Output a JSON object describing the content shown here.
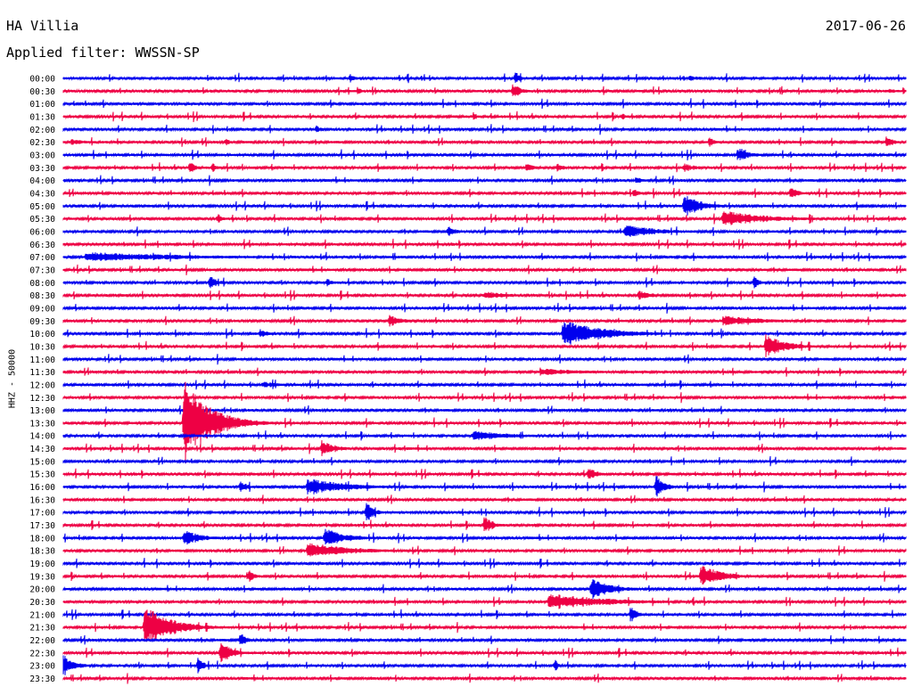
{
  "header": {
    "station": "HA Villia",
    "date": "2017-06-26",
    "filter": "Applied filter: WWSSN-SP"
  },
  "chart_data": {
    "type": "line",
    "title": "HA Villia",
    "ylabel": "HHZ - 50000",
    "grid": false,
    "trace_colors": [
      "#0000ee",
      "#ee0044"
    ],
    "rows": [
      "00:00",
      "00:30",
      "01:00",
      "01:30",
      "02:00",
      "02:30",
      "03:00",
      "03:30",
      "04:00",
      "04:30",
      "05:00",
      "05:30",
      "06:00",
      "06:30",
      "07:00",
      "07:30",
      "08:00",
      "08:30",
      "09:00",
      "09:30",
      "10:00",
      "10:30",
      "11:00",
      "11:30",
      "12:00",
      "12:30",
      "13:00",
      "13:30",
      "14:00",
      "14:30",
      "15:00",
      "15:30",
      "16:00",
      "16:30",
      "17:00",
      "17:30",
      "18:00",
      "18:30",
      "19:00",
      "19:30",
      "20:00",
      "20:30",
      "21:00",
      "21:30",
      "22:00",
      "22:30",
      "23:00",
      "23:30"
    ],
    "x_range_minutes": [
      0,
      30
    ],
    "events": [
      {
        "row": "00:00",
        "t": 10.2,
        "amp": 5,
        "dur": 0.3
      },
      {
        "row": "00:00",
        "t": 16.1,
        "amp": 9,
        "dur": 0.2
      },
      {
        "row": "00:00",
        "t": 22.3,
        "amp": 3,
        "dur": 1.2
      },
      {
        "row": "00:30",
        "t": 10.5,
        "amp": 4,
        "dur": 0.3
      },
      {
        "row": "00:30",
        "t": 16.0,
        "amp": 9,
        "dur": 0.5
      },
      {
        "row": "00:30",
        "t": 29.4,
        "amp": 3,
        "dur": 0.6
      },
      {
        "row": "01:30",
        "t": 14.6,
        "amp": 4,
        "dur": 0.2
      },
      {
        "row": "01:30",
        "t": 19.9,
        "amp": 4,
        "dur": 0.3
      },
      {
        "row": "02:00",
        "t": 9.0,
        "amp": 5,
        "dur": 0.3
      },
      {
        "row": "02:30",
        "t": 0.3,
        "amp": 4,
        "dur": 1.0
      },
      {
        "row": "02:30",
        "t": 5.8,
        "amp": 4,
        "dur": 0.3
      },
      {
        "row": "02:30",
        "t": 23.0,
        "amp": 6,
        "dur": 0.3
      },
      {
        "row": "02:30",
        "t": 29.3,
        "amp": 7,
        "dur": 0.4
      },
      {
        "row": "03:00",
        "t": 24.1,
        "amp": 9,
        "dur": 0.6
      },
      {
        "row": "03:30",
        "t": 4.5,
        "amp": 8,
        "dur": 0.3
      },
      {
        "row": "03:30",
        "t": 5.3,
        "amp": 6,
        "dur": 0.3
      },
      {
        "row": "03:30",
        "t": 16.5,
        "amp": 6,
        "dur": 0.4
      },
      {
        "row": "03:30",
        "t": 17.6,
        "amp": 6,
        "dur": 0.3
      },
      {
        "row": "03:30",
        "t": 22.1,
        "amp": 5,
        "dur": 0.8
      },
      {
        "row": "04:00",
        "t": 20.4,
        "amp": 5,
        "dur": 0.3
      },
      {
        "row": "04:30",
        "t": 20.3,
        "amp": 6,
        "dur": 0.3
      },
      {
        "row": "04:30",
        "t": 25.9,
        "amp": 8,
        "dur": 0.4
      },
      {
        "row": "05:00",
        "t": 22.1,
        "amp": 14,
        "dur": 1.0
      },
      {
        "row": "05:30",
        "t": 23.5,
        "amp": 10,
        "dur": 2.5
      },
      {
        "row": "05:30",
        "t": 5.5,
        "amp": 6,
        "dur": 0.3
      },
      {
        "row": "06:00",
        "t": 13.7,
        "amp": 7,
        "dur": 0.4
      },
      {
        "row": "06:00",
        "t": 20.0,
        "amp": 8,
        "dur": 2.0
      },
      {
        "row": "07:00",
        "t": 0.8,
        "amp": 6,
        "dur": 6.5
      },
      {
        "row": "08:00",
        "t": 5.2,
        "amp": 8,
        "dur": 0.5
      },
      {
        "row": "08:00",
        "t": 9.4,
        "amp": 5,
        "dur": 0.3
      },
      {
        "row": "08:00",
        "t": 24.6,
        "amp": 8,
        "dur": 0.3
      },
      {
        "row": "08:30",
        "t": 15.0,
        "amp": 5,
        "dur": 1.5
      },
      {
        "row": "08:30",
        "t": 20.5,
        "amp": 6,
        "dur": 0.8
      },
      {
        "row": "09:30",
        "t": 11.6,
        "amp": 7,
        "dur": 0.8
      },
      {
        "row": "09:30",
        "t": 23.5,
        "amp": 6,
        "dur": 2.8
      },
      {
        "row": "10:00",
        "t": 17.8,
        "amp": 15,
        "dur": 2.5
      },
      {
        "row": "10:00",
        "t": 7.0,
        "amp": 6,
        "dur": 0.4
      },
      {
        "row": "10:30",
        "t": 25.0,
        "amp": 14,
        "dur": 1.2
      },
      {
        "row": "11:30",
        "t": 17.0,
        "amp": 4,
        "dur": 3.5
      },
      {
        "row": "12:00",
        "t": 7.1,
        "amp": 4,
        "dur": 1.0
      },
      {
        "row": "13:30",
        "t": 4.3,
        "amp": 50,
        "dur": 1.5
      },
      {
        "row": "14:00",
        "t": 14.6,
        "amp": 6,
        "dur": 2.5
      },
      {
        "row": "14:30",
        "t": 9.2,
        "amp": 10,
        "dur": 0.8
      },
      {
        "row": "15:30",
        "t": 18.7,
        "amp": 8,
        "dur": 0.5
      },
      {
        "row": "16:00",
        "t": 6.3,
        "amp": 8,
        "dur": 0.4
      },
      {
        "row": "16:00",
        "t": 8.7,
        "amp": 10,
        "dur": 2.5
      },
      {
        "row": "16:00",
        "t": 21.1,
        "amp": 14,
        "dur": 0.5
      },
      {
        "row": "17:00",
        "t": 10.8,
        "amp": 12,
        "dur": 0.4
      },
      {
        "row": "17:30",
        "t": 15.0,
        "amp": 12,
        "dur": 0.4
      },
      {
        "row": "18:00",
        "t": 4.3,
        "amp": 10,
        "dur": 1.0
      },
      {
        "row": "18:00",
        "t": 9.3,
        "amp": 12,
        "dur": 1.2
      },
      {
        "row": "18:30",
        "t": 8.7,
        "amp": 10,
        "dur": 2.5
      },
      {
        "row": "19:30",
        "t": 6.6,
        "amp": 10,
        "dur": 0.3
      },
      {
        "row": "19:30",
        "t": 22.7,
        "amp": 14,
        "dur": 1.2
      },
      {
        "row": "20:00",
        "t": 18.8,
        "amp": 12,
        "dur": 1.2
      },
      {
        "row": "20:30",
        "t": 17.3,
        "amp": 10,
        "dur": 3.5
      },
      {
        "row": "21:00",
        "t": 20.2,
        "amp": 10,
        "dur": 0.4
      },
      {
        "row": "21:30",
        "t": 2.9,
        "amp": 26,
        "dur": 1.5
      },
      {
        "row": "22:00",
        "t": 6.3,
        "amp": 10,
        "dur": 0.3
      },
      {
        "row": "22:30",
        "t": 5.6,
        "amp": 14,
        "dur": 0.6
      },
      {
        "row": "23:00",
        "t": 0.0,
        "amp": 14,
        "dur": 0.6
      },
      {
        "row": "23:00",
        "t": 4.8,
        "amp": 10,
        "dur": 0.3
      },
      {
        "row": "23:00",
        "t": 17.5,
        "amp": 8,
        "dur": 0.2
      }
    ]
  }
}
